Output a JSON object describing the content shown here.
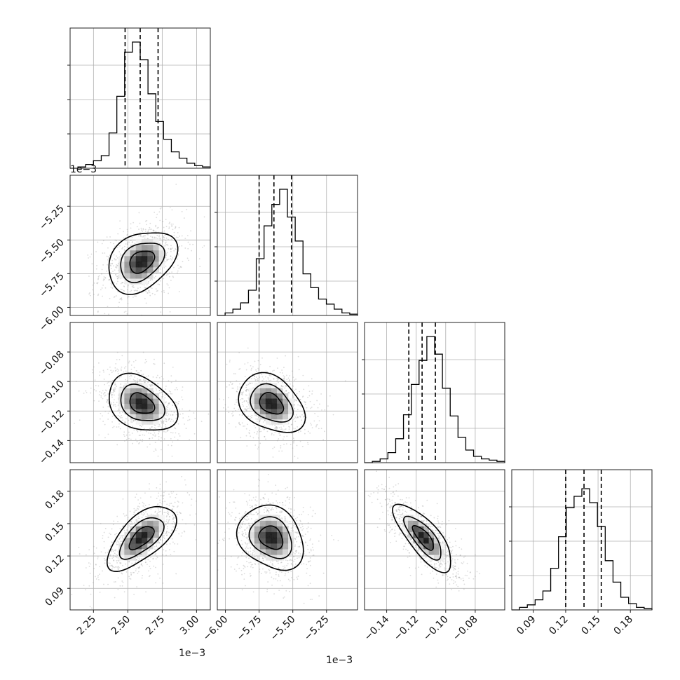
{
  "chart_data": {
    "type": "corner",
    "grid": true,
    "parameters": [
      {
        "range": [
          2.08,
          3.1
        ],
        "ticks": [
          2.25,
          2.5,
          2.75,
          3.0
        ],
        "tick_labels": [
          "2.25",
          "2.50",
          "2.75",
          "3.00"
        ],
        "offset_label": "1e−3",
        "center": 2.6,
        "sd_x": 0.095,
        "quantiles": [
          2.48,
          2.59,
          2.72
        ]
      },
      {
        "range": [
          -6.06,
          -5.02
        ],
        "ticks": [
          -6.0,
          -5.75,
          -5.5,
          -5.25
        ],
        "tick_labels": [
          "−6.00",
          "−5.75",
          "−5.50",
          "−5.25"
        ],
        "offset_label": "1e−3",
        "center": -5.66,
        "sd_x": 0.095,
        "quantiles": [
          -5.75,
          -5.64,
          -5.51
        ]
      },
      {
        "range": [
          -0.155,
          -0.06
        ],
        "ticks": [
          -0.14,
          -0.12,
          -0.1,
          -0.08
        ],
        "tick_labels": [
          "−0.14",
          "−0.12",
          "−0.10",
          "−0.08"
        ],
        "offset_label": "",
        "center": -0.115,
        "sd_x": 0.008,
        "quantiles": [
          -0.125,
          -0.116,
          -0.107
        ]
      },
      {
        "range": [
          0.07,
          0.2
        ],
        "ticks": [
          0.09,
          0.12,
          0.15,
          0.18
        ],
        "tick_labels": [
          "0.09",
          "0.12",
          "0.15",
          "0.18"
        ],
        "offset_label": "",
        "center": 0.137,
        "sd_x": 0.012,
        "quantiles": [
          0.12,
          0.137,
          0.153
        ]
      }
    ],
    "histograms": [
      [
        0.0,
        0.01,
        0.03,
        0.06,
        0.1,
        0.28,
        0.57,
        0.92,
        1.0,
        0.86,
        0.59,
        0.37,
        0.23,
        0.13,
        0.08,
        0.04,
        0.02,
        0.01
      ],
      [
        0.0,
        0.02,
        0.05,
        0.1,
        0.2,
        0.45,
        0.71,
        0.88,
        1.0,
        0.78,
        0.59,
        0.33,
        0.22,
        0.13,
        0.09,
        0.05,
        0.02,
        0.01
      ],
      [
        0.0,
        0.01,
        0.03,
        0.08,
        0.19,
        0.38,
        0.62,
        0.81,
        1.0,
        0.86,
        0.59,
        0.37,
        0.2,
        0.1,
        0.05,
        0.03,
        0.02,
        0.01
      ],
      [
        0.0,
        0.02,
        0.04,
        0.08,
        0.15,
        0.33,
        0.58,
        0.81,
        0.9,
        0.96,
        0.85,
        0.66,
        0.39,
        0.22,
        0.1,
        0.05,
        0.02,
        0.01
      ]
    ],
    "pairs": [
      {
        "row": 1,
        "col": 0,
        "rho": 0.3,
        "scale": [
          1.0,
          1.0
        ]
      },
      {
        "row": 2,
        "col": 0,
        "rho": -0.3,
        "scale": [
          1.0,
          1.0
        ]
      },
      {
        "row": 2,
        "col": 1,
        "rho": -0.25,
        "scale": [
          1.0,
          1.0
        ]
      },
      {
        "row": 3,
        "col": 0,
        "rho": 0.6,
        "scale": [
          1.0,
          1.0
        ]
      },
      {
        "row": 3,
        "col": 1,
        "rho": -0.15,
        "scale": [
          1.0,
          1.0
        ]
      },
      {
        "row": 3,
        "col": 2,
        "rho": -0.75,
        "scale": [
          1.0,
          1.0
        ]
      }
    ],
    "contour_levels": [
      0.9,
      1.6,
      2.5
    ],
    "colors": {
      "frame": "#222222",
      "grid": "#b0b0b0",
      "points": "#9a9a9a",
      "density": "#000000",
      "contour": "#000000"
    }
  }
}
